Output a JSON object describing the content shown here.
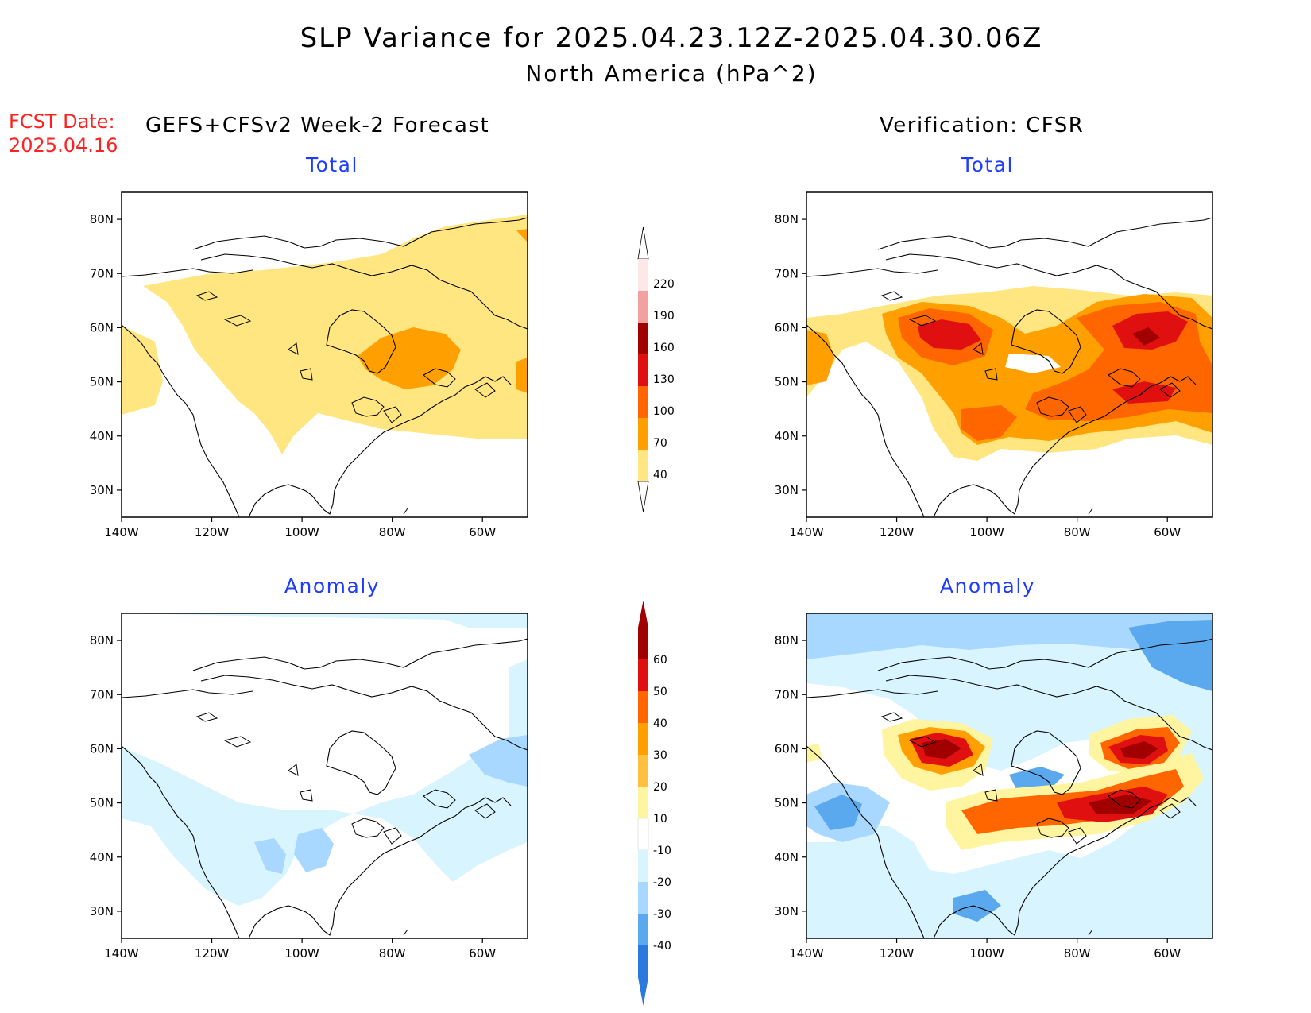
{
  "title": "SLP Variance for 2025.04.23.12Z-2025.04.30.06Z",
  "subtitle": "North America (hPa^2)",
  "fcst_date_label": "FCST Date:",
  "fcst_date_value": "2025.04.16",
  "left_header": "GEFS+CFSv2 Week-2 Forecast",
  "right_header": "Verification: CFSR",
  "panels": [
    {
      "title": "Total",
      "field": "total",
      "source": "forecast"
    },
    {
      "title": "Total",
      "field": "total",
      "source": "verification"
    },
    {
      "title": "Anomaly",
      "field": "anomaly",
      "source": "forecast"
    },
    {
      "title": "Anomaly",
      "field": "anomaly",
      "source": "verification"
    }
  ],
  "lat_ticks": [
    "80N",
    "70N",
    "60N",
    "50N",
    "40N",
    "30N"
  ],
  "lon_ticks": [
    "140W",
    "120W",
    "100W",
    "80W",
    "60W"
  ],
  "colorbars": {
    "total": {
      "labels": [
        "220",
        "190",
        "160",
        "130",
        "100",
        "70",
        "40"
      ],
      "colors": [
        "#fde8e8",
        "#f2a0a0",
        "#a00000",
        "#e01010",
        "#ff6600",
        "#ffa000",
        "#ffe680"
      ]
    },
    "anomaly": {
      "labels": [
        "60",
        "50",
        "40",
        "30",
        "20",
        "10",
        "-10",
        "-20",
        "-30",
        "-40"
      ],
      "colors": [
        "#a00000",
        "#e01010",
        "#ff6600",
        "#ffa000",
        "#ffc040",
        "#fff5a0",
        "#ffffff",
        "#d8f4ff",
        "#a8d8ff",
        "#5aa8ee",
        "#2a7ade"
      ]
    }
  },
  "chart_data": [
    {
      "type": "heatmap",
      "title": "Total",
      "header": "GEFS+CFSv2 Week-2 Forecast",
      "xlabel": "",
      "ylabel": "",
      "xlim": [
        -140,
        -50
      ],
      "ylim": [
        25,
        85
      ],
      "levels": [
        40,
        70,
        100,
        130,
        160,
        190,
        220
      ],
      "regions": [
        {
          "level": "40-70",
          "area": "broad band from 60W-140W, 40N-70N"
        },
        {
          "level": "70-100",
          "area": "Hudson Bay region near 55N 80W"
        },
        {
          "level": "70-100",
          "area": "Atlantic near 50N 50W"
        }
      ]
    },
    {
      "type": "heatmap",
      "title": "Total",
      "header": "Verification: CFSR",
      "xlabel": "",
      "ylabel": "",
      "xlim": [
        -140,
        -50
      ],
      "ylim": [
        25,
        85
      ],
      "levels": [
        40,
        70,
        100,
        130,
        160,
        190,
        220
      ],
      "regions": [
        {
          "level": "130-160",
          "area": "near 58N 110W"
        },
        {
          "level": "130-160",
          "area": "near 58N 65W"
        },
        {
          "level": "100-130",
          "area": "band 45-50N from 90W to 55W"
        },
        {
          "level": "70-100",
          "area": "broad area 40N-62N, 120W-50W"
        }
      ]
    },
    {
      "type": "heatmap",
      "title": "Anomaly",
      "header": "GEFS+CFSv2 Week-2 Forecast",
      "xlabel": "",
      "ylabel": "",
      "xlim": [
        -140,
        -50
      ],
      "ylim": [
        25,
        85
      ],
      "levels": [
        -40,
        -30,
        -20,
        -10,
        10,
        20,
        30,
        40,
        50,
        60
      ],
      "regions": [
        {
          "level": "-10 to -20",
          "area": "broad area 30N-60N, 140W-55W"
        },
        {
          "level": "-20 to -30",
          "area": "near 42N 105W and 55N 60W"
        }
      ]
    },
    {
      "type": "heatmap",
      "title": "Anomaly",
      "header": "Verification: CFSR",
      "xlabel": "",
      "ylabel": "",
      "xlim": [
        -140,
        -50
      ],
      "ylim": [
        25,
        85
      ],
      "levels": [
        -40,
        -30,
        -20,
        -10,
        10,
        20,
        30,
        40,
        50,
        60
      ],
      "regions": [
        {
          "level": ">60",
          "area": "near 58N 110W"
        },
        {
          "level": ">60",
          "area": "near 58N 68W"
        },
        {
          "level": ">60",
          "area": "near 47N 70W"
        },
        {
          "level": "40-60",
          "area": "band 45N from 100W to 60W"
        },
        {
          "level": "-30 to -40",
          "area": "near 48N 130W and Greenland 75N 50W"
        },
        {
          "level": "-10 to -30",
          "area": "high latitudes 75N-85N"
        }
      ]
    }
  ]
}
